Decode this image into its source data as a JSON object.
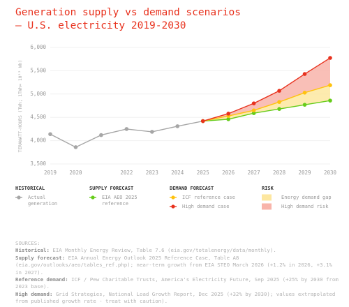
{
  "chart_data": {
    "type": "line",
    "title": [
      "Generation supply vs demand scenarios",
      "— U.S. electricity 2019-2030"
    ],
    "y_label": "TERAWATT-HOURS (TWh; 1TWh= 10¹² Wh)",
    "categories": [
      "2019",
      "2020",
      null,
      "2022",
      "2023",
      "2024",
      "2025",
      "2026",
      "2027",
      "2028",
      "2029",
      "2030"
    ],
    "ylim": [
      3500,
      6000
    ],
    "yticks": [
      {
        "value": 3500,
        "label": "3,500"
      },
      {
        "value": 4000,
        "label": "4,000"
      },
      {
        "value": 4500,
        "label": "4,500"
      },
      {
        "value": 5000,
        "label": "5,000"
      },
      {
        "value": 5500,
        "label": "5,500"
      },
      {
        "value": 6000,
        "label": "6,000"
      }
    ],
    "grid": true,
    "legend_groups": [
      "HISTORICAL",
      "SUPPLY FORECAST",
      "DEMAND FORECAST",
      "RISK"
    ],
    "series": [
      {
        "name": "Actual generation",
        "color": "#a6a6a6",
        "values": [
          4140,
          3860,
          4120,
          4250,
          4190,
          4310,
          4420,
          null,
          null,
          null,
          null,
          null
        ]
      },
      {
        "name": "EIA AEO 2025 reference",
        "color": "#66cc1a",
        "values": [
          null,
          null,
          null,
          null,
          null,
          null,
          4420,
          4460,
          4590,
          4680,
          4770,
          4860
        ]
      },
      {
        "name": "ICF reference case",
        "color": "#ffc20e",
        "values": [
          null,
          null,
          null,
          null,
          null,
          null,
          4420,
          4530,
          4650,
          4830,
          5030,
          5190
        ]
      },
      {
        "name": "High demand case",
        "color": "#e8321e",
        "values": [
          null,
          null,
          null,
          null,
          null,
          null,
          4420,
          4580,
          4800,
          5070,
          5430,
          5775
        ]
      }
    ],
    "bands": [
      {
        "name": "Energy demand gap",
        "color": "#fde7a0"
      },
      {
        "name": "High demand risk",
        "color": "#f8b4aa"
      }
    ],
    "sources": {
      "heading": "SOURCES:",
      "items": [
        {
          "label": "Historical:",
          "text": "EIA Monthly Energy Review, Table 7.6 (eia.gov/totalenergy/data/monthly)."
        },
        {
          "label": "Supply forecast:",
          "text": "EIA Annual Energy Outlook 2025 Reference Case, Table A8 (eia.gov/outlooks/aeo/tables_ref.php); near-term growth from EIA STEO March 2026 (+1.2% in 2026, +3.1% in 2027)."
        },
        {
          "label": "Reference demand:",
          "text": "ICF / Pew Charitable Trusts, America's Electricity Future, Sep 2025 (+25% by 2030 from 2023 base)."
        },
        {
          "label": "High demand:",
          "text": "Grid Strategies, National Load Growth Report, Dec 2025 (+32% by 2030); values extrapolated from published growth rate - treat with caution)."
        }
      ]
    }
  }
}
